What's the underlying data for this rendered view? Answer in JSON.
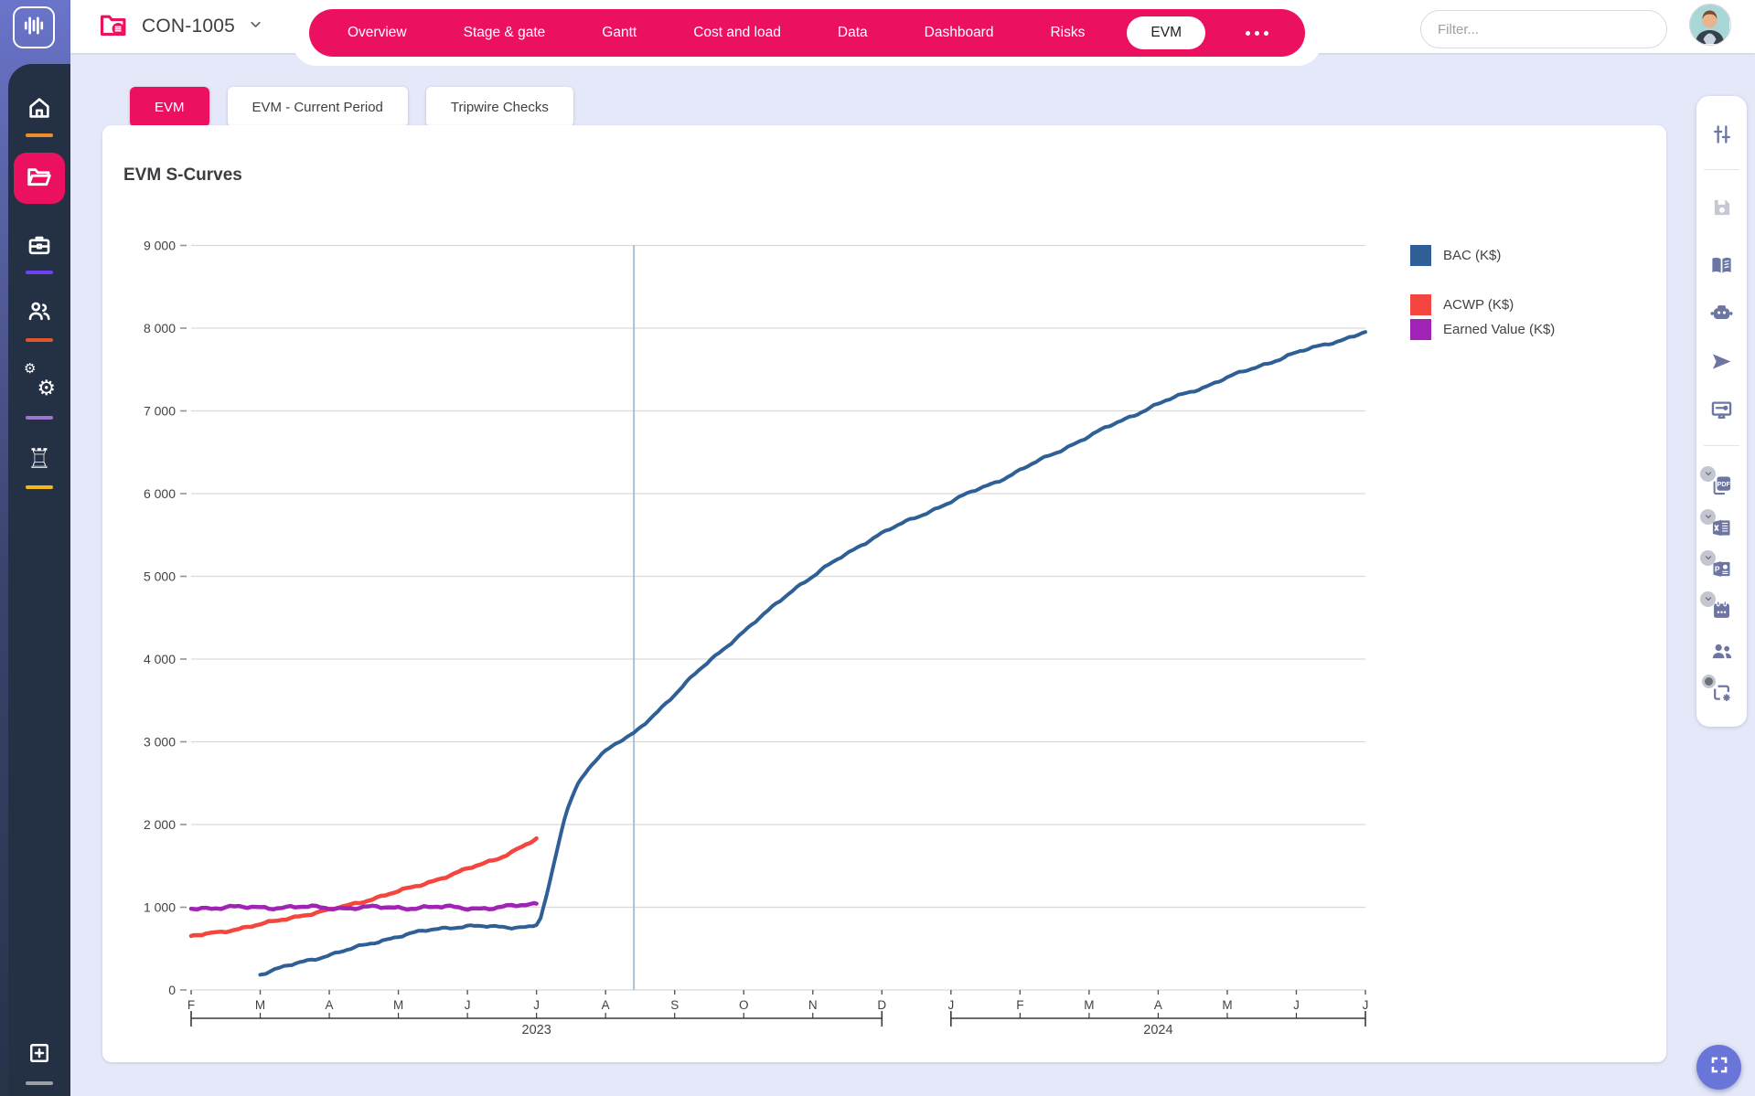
{
  "app": {
    "logo_icon": "waveform-icon"
  },
  "topbar": {
    "project_code": "CON-1005",
    "project_icon": "project-folder-icon",
    "filter_placeholder": "Filter...",
    "nav_tabs": [
      {
        "label": "Overview"
      },
      {
        "label": "Stage & gate"
      },
      {
        "label": "Gantt"
      },
      {
        "label": "Cost and load"
      },
      {
        "label": "Data"
      },
      {
        "label": "Dashboard"
      },
      {
        "label": "Risks"
      },
      {
        "label": "EVM",
        "active": true
      }
    ],
    "more_tabs_icon": "ellipsis-icon"
  },
  "sidebar": {
    "items": [
      {
        "icon": "home",
        "underline": "#ef8d2a",
        "active": false
      },
      {
        "icon": "projects-folder",
        "underline": null,
        "active": true
      },
      {
        "icon": "briefcase",
        "underline": "#6e3ff3",
        "active": false
      },
      {
        "icon": "team",
        "underline": "#e2552a",
        "active": false
      },
      {
        "icon": "settings-gears",
        "underline": "#9d75cc",
        "active": false
      },
      {
        "icon": "strategy-chess",
        "underline": "#f2b719",
        "active": false
      }
    ],
    "footer_items": [
      {
        "icon": "add-square",
        "underline": "#9aa0a6",
        "active": false
      }
    ]
  },
  "subtabs": [
    {
      "label": "EVM",
      "active": true
    },
    {
      "label": "EVM - Current Period",
      "active": false
    },
    {
      "label": "Tripwire Checks",
      "active": false
    }
  ],
  "right_toolbar": {
    "items": [
      {
        "icon": "tune"
      },
      {
        "type": "divider"
      },
      {
        "icon": "save",
        "disabled": true
      },
      {
        "icon": "reference-book"
      },
      {
        "icon": "ai-assistant"
      },
      {
        "icon": "send"
      },
      {
        "icon": "presentation-display"
      },
      {
        "type": "divider"
      },
      {
        "icon": "export-pdf",
        "badge": "chevron"
      },
      {
        "icon": "export-excel",
        "badge": "chevron"
      },
      {
        "icon": "export-powerpoint",
        "badge": "chevron"
      },
      {
        "icon": "export-schedule",
        "badge": "chevron"
      },
      {
        "icon": "share-team"
      },
      {
        "icon": "integration-flow",
        "badge": "dot"
      }
    ]
  },
  "fab": {
    "icon": "fullscreen-icon"
  },
  "chart_data": {
    "type": "line",
    "title": "EVM S-Curves",
    "x_tick_labels": [
      "F",
      "M",
      "A",
      "M",
      "J",
      "J",
      "A",
      "S",
      "O",
      "N",
      "D",
      "J",
      "F",
      "M",
      "A",
      "M",
      "J",
      "J"
    ],
    "year_groups": [
      {
        "label": "2023",
        "from_index": 0,
        "to_index": 10
      },
      {
        "label": "2024",
        "from_index": 11,
        "to_index": 17
      }
    ],
    "ylim": [
      0,
      9000
    ],
    "y_tick_step": 1000,
    "y_tick_format": "space-thousands",
    "grid": true,
    "today_line_index": 6.41,
    "legend_position": "right",
    "series": [
      {
        "name": "BAC (K$)",
        "color": "#2e6095",
        "width": 4,
        "points": [
          [
            1,
            190
          ],
          [
            1.4,
            290
          ],
          [
            1.8,
            380
          ],
          [
            2.2,
            470
          ],
          [
            2.6,
            560
          ],
          [
            3,
            650
          ],
          [
            3.4,
            715
          ],
          [
            3.8,
            760
          ],
          [
            4.1,
            775
          ],
          [
            4.4,
            758
          ],
          [
            4.7,
            760
          ],
          [
            5,
            800
          ],
          [
            5.1,
            1000
          ],
          [
            5.25,
            1500
          ],
          [
            5.4,
            2050
          ],
          [
            5.55,
            2400
          ],
          [
            5.7,
            2620
          ],
          [
            5.85,
            2780
          ],
          [
            6,
            2890
          ],
          [
            6.2,
            3000
          ],
          [
            6.41,
            3100
          ],
          [
            6.7,
            3330
          ],
          [
            7,
            3570
          ],
          [
            7.35,
            3860
          ],
          [
            7.7,
            4120
          ],
          [
            8,
            4330
          ],
          [
            8.35,
            4580
          ],
          [
            8.7,
            4830
          ],
          [
            9,
            5000
          ],
          [
            9.35,
            5200
          ],
          [
            9.7,
            5380
          ],
          [
            10,
            5520
          ],
          [
            10.35,
            5660
          ],
          [
            10.7,
            5790
          ],
          [
            11,
            5900
          ],
          [
            11.35,
            6040
          ],
          [
            11.7,
            6160
          ],
          [
            12,
            6280
          ],
          [
            12.35,
            6430
          ],
          [
            12.7,
            6570
          ],
          [
            13,
            6690
          ],
          [
            13.35,
            6840
          ],
          [
            13.7,
            6970
          ],
          [
            14,
            7080
          ],
          [
            14.35,
            7200
          ],
          [
            14.7,
            7300
          ],
          [
            15,
            7400
          ],
          [
            15.35,
            7510
          ],
          [
            15.7,
            7610
          ],
          [
            16,
            7700
          ],
          [
            16.35,
            7790
          ],
          [
            16.7,
            7870
          ],
          [
            17,
            7950
          ]
        ]
      },
      {
        "name": "ACWP (K$)",
        "color": "#f4453e",
        "width": 4.5,
        "points": [
          [
            0,
            645
          ],
          [
            0.5,
            715
          ],
          [
            1,
            790
          ],
          [
            1.5,
            885
          ],
          [
            2,
            965
          ],
          [
            2.5,
            1075
          ],
          [
            3,
            1190
          ],
          [
            3.5,
            1320
          ],
          [
            4,
            1460
          ],
          [
            4.5,
            1615
          ],
          [
            5,
            1820
          ]
        ]
      },
      {
        "name": "Earned Value (K$)",
        "color": "#a123b5",
        "width": 4.5,
        "points": [
          [
            0,
            985
          ],
          [
            0.5,
            1000
          ],
          [
            1,
            995
          ],
          [
            1.5,
            1005
          ],
          [
            2,
            990
          ],
          [
            2.5,
            1000
          ],
          [
            3,
            992
          ],
          [
            3.5,
            1003
          ],
          [
            4,
            990
          ],
          [
            4.5,
            1000
          ],
          [
            5,
            1040
          ]
        ]
      }
    ]
  }
}
